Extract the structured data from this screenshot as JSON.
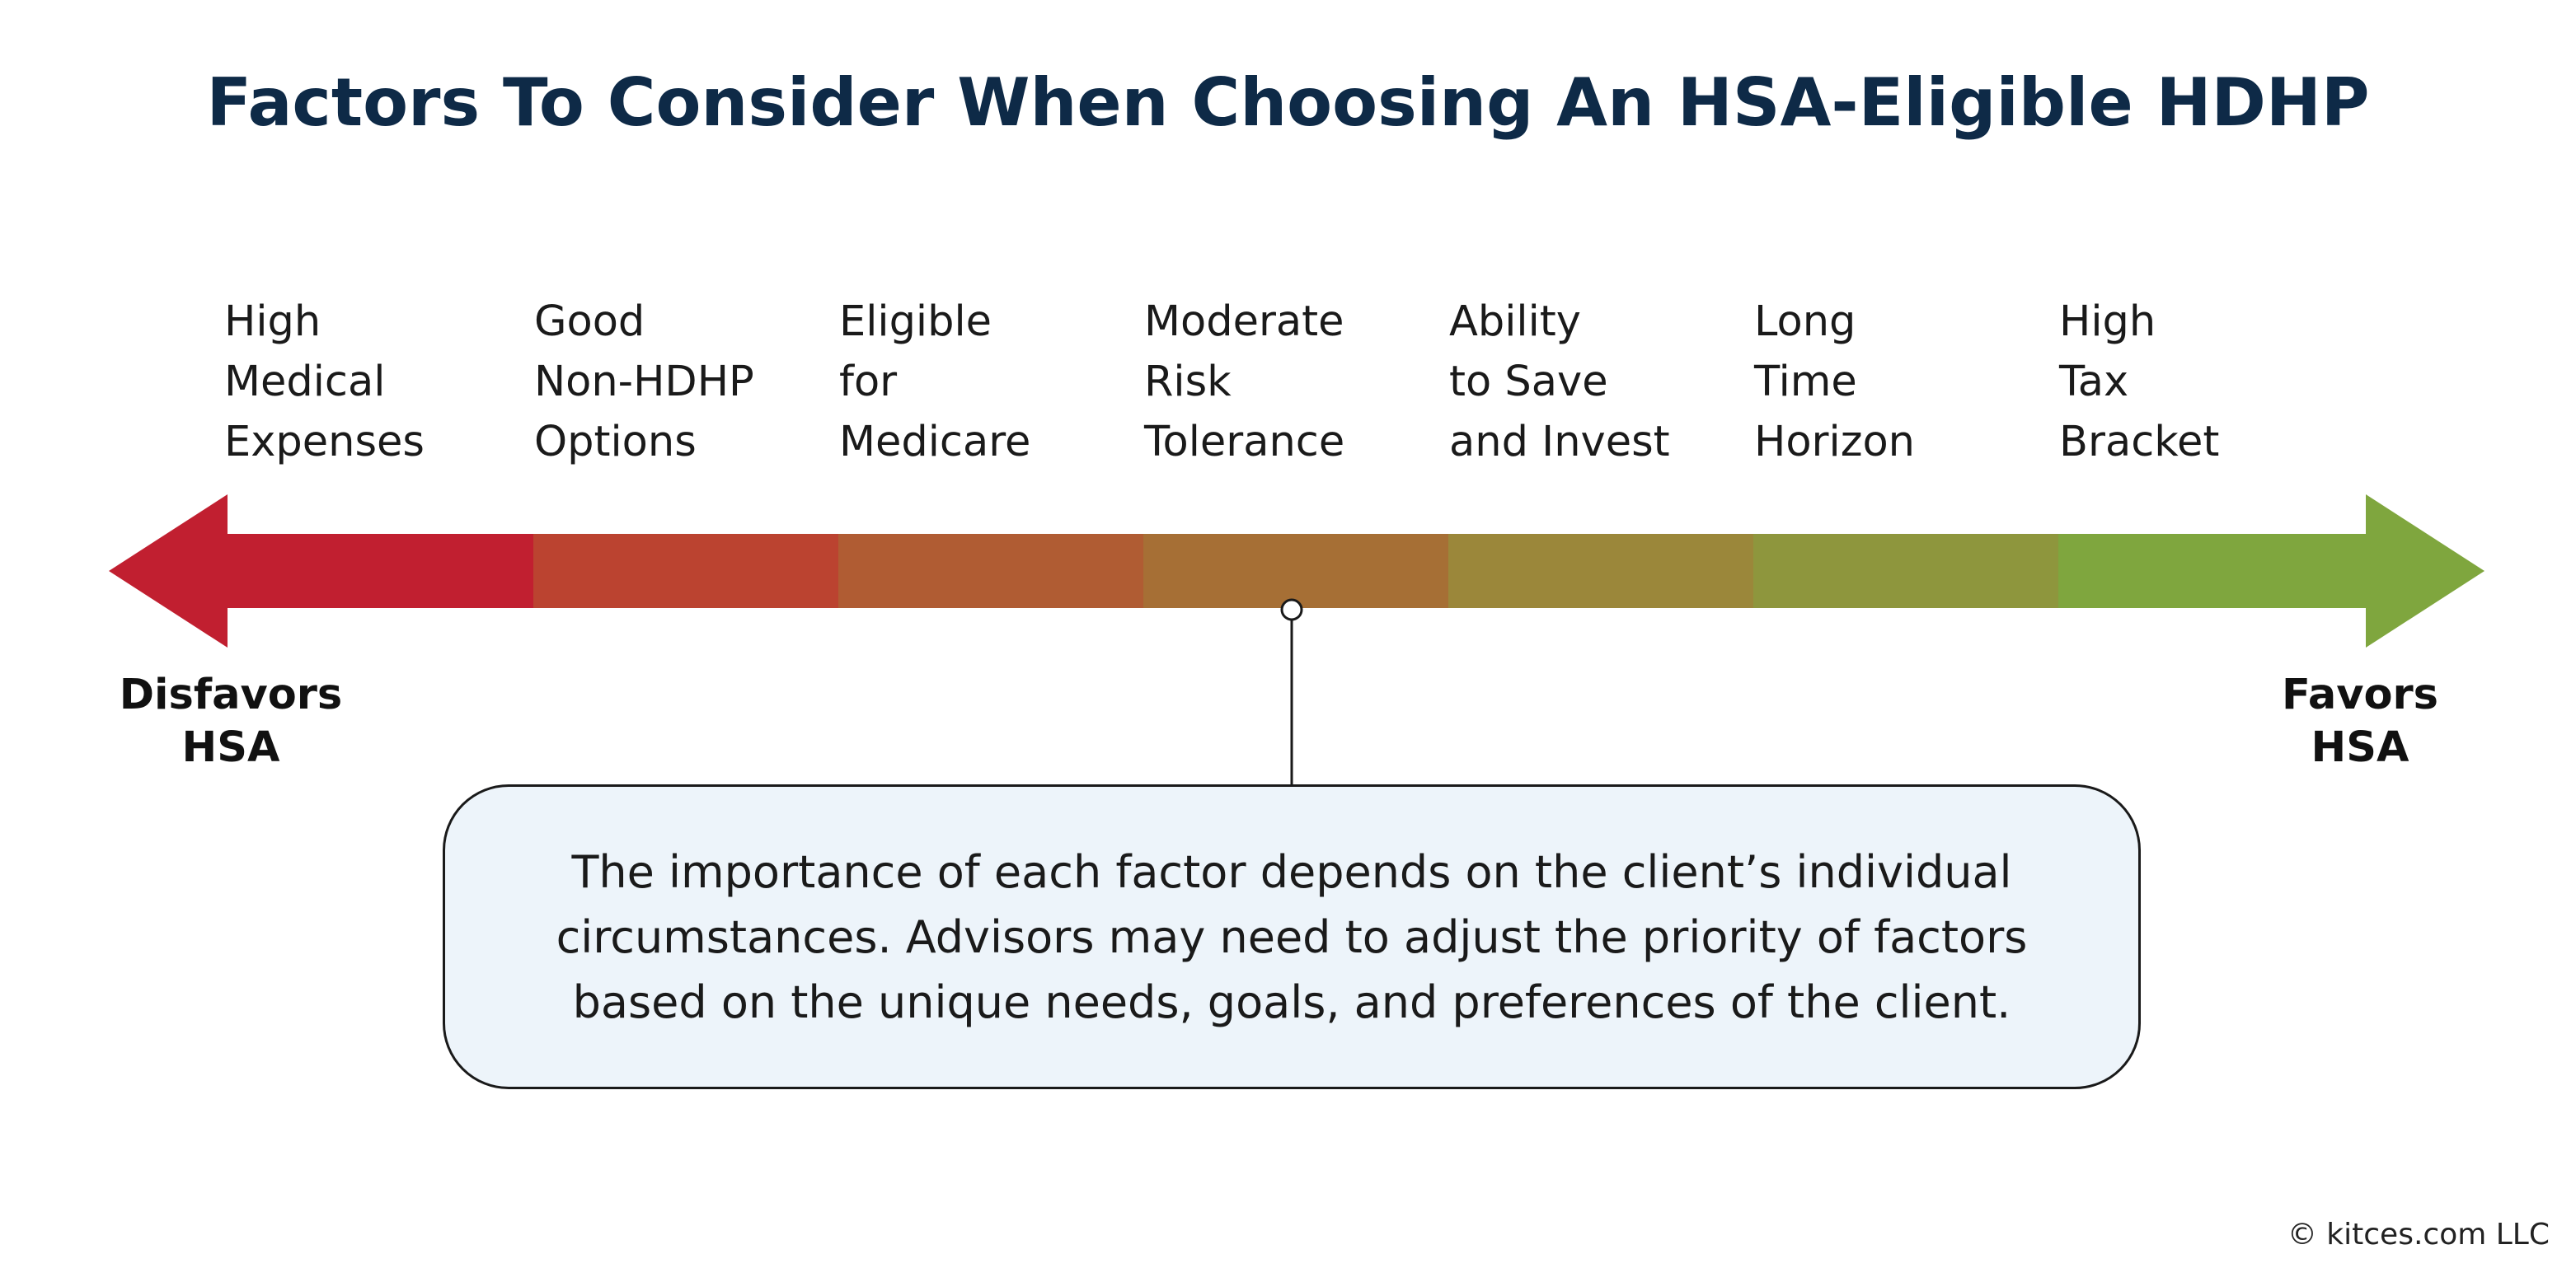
{
  "title": "Factors To Consider When Choosing An HSA-Eligible HDHP",
  "factors": [
    {
      "lines": [
        "High",
        "Medical",
        "Expenses"
      ],
      "color": "#c11f30"
    },
    {
      "lines": [
        "Good",
        "Non-HDHP",
        "Options"
      ],
      "color": "#bb4330"
    },
    {
      "lines": [
        "Eligible",
        "for",
        "Medicare"
      ],
      "color": "#b05c33"
    },
    {
      "lines": [
        "Moderate",
        "Risk",
        "Tolerance"
      ],
      "color": "#a66f35"
    },
    {
      "lines": [
        "Ability",
        "to Save",
        "and Invest"
      ],
      "color": "#9b873a"
    },
    {
      "lines": [
        "Long",
        "Time",
        "Horizon"
      ],
      "color": "#8e963d"
    },
    {
      "lines": [
        "High",
        "Tax",
        "Bracket"
      ],
      "color": "#7fa63e"
    }
  ],
  "left_end": {
    "line1": "Disfavors",
    "line2": "HSA"
  },
  "right_end": {
    "line1": "Favors",
    "line2": "HSA"
  },
  "callout": "The importance of each factor depends on the client’s individual circumstances. Advisors may need to adjust the priority of factors based on the unique needs, goals, and preferences of the client.",
  "copyright": "© kitces.com LLC"
}
